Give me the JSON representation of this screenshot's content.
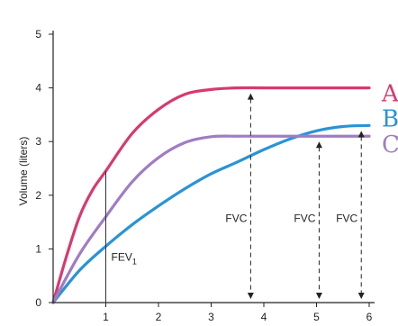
{
  "chart_data": {
    "type": "line",
    "xlabel": "",
    "ylabel": "Volume (liters)",
    "xlim": [
      0,
      6
    ],
    "ylim": [
      0,
      5
    ],
    "x_ticks": [
      "1",
      "2",
      "3",
      "4",
      "5",
      "6"
    ],
    "y_ticks": [
      "0",
      "1",
      "2",
      "3",
      "4",
      "5"
    ],
    "grid": false,
    "series": [
      {
        "name": "A",
        "color": "#d63a6e",
        "x": [
          0,
          0.25,
          0.5,
          0.75,
          1,
          1.5,
          2,
          2.5,
          3,
          3.5,
          4,
          5,
          6
        ],
        "y": [
          0,
          0.85,
          1.6,
          2.1,
          2.45,
          3.15,
          3.6,
          3.88,
          3.97,
          4.0,
          4.0,
          4.0,
          4.0
        ]
      },
      {
        "name": "B",
        "color": "#2a93d5",
        "x": [
          0,
          0.5,
          1,
          1.5,
          2,
          2.5,
          3,
          3.5,
          4,
          4.5,
          5,
          5.5,
          6
        ],
        "y": [
          0,
          0.6,
          1.05,
          1.45,
          1.8,
          2.12,
          2.4,
          2.62,
          2.85,
          3.05,
          3.2,
          3.28,
          3.3
        ]
      },
      {
        "name": "C",
        "color": "#a07cc4",
        "x": [
          0,
          0.5,
          1,
          1.5,
          2,
          2.5,
          3,
          3.5,
          4,
          5,
          6
        ],
        "y": [
          0,
          0.9,
          1.6,
          2.25,
          2.7,
          2.98,
          3.09,
          3.1,
          3.1,
          3.1,
          3.1
        ]
      }
    ],
    "annotations": {
      "fev1": {
        "label": "FEV",
        "subscript": "1",
        "x": 1
      },
      "fvc": [
        {
          "label": "FVC",
          "x": 3.75,
          "y": 4.0
        },
        {
          "label": "FVC",
          "x": 5.05,
          "y": 3.1
        },
        {
          "label": "FVC",
          "x": 5.85,
          "y": 3.3
        }
      ]
    }
  }
}
